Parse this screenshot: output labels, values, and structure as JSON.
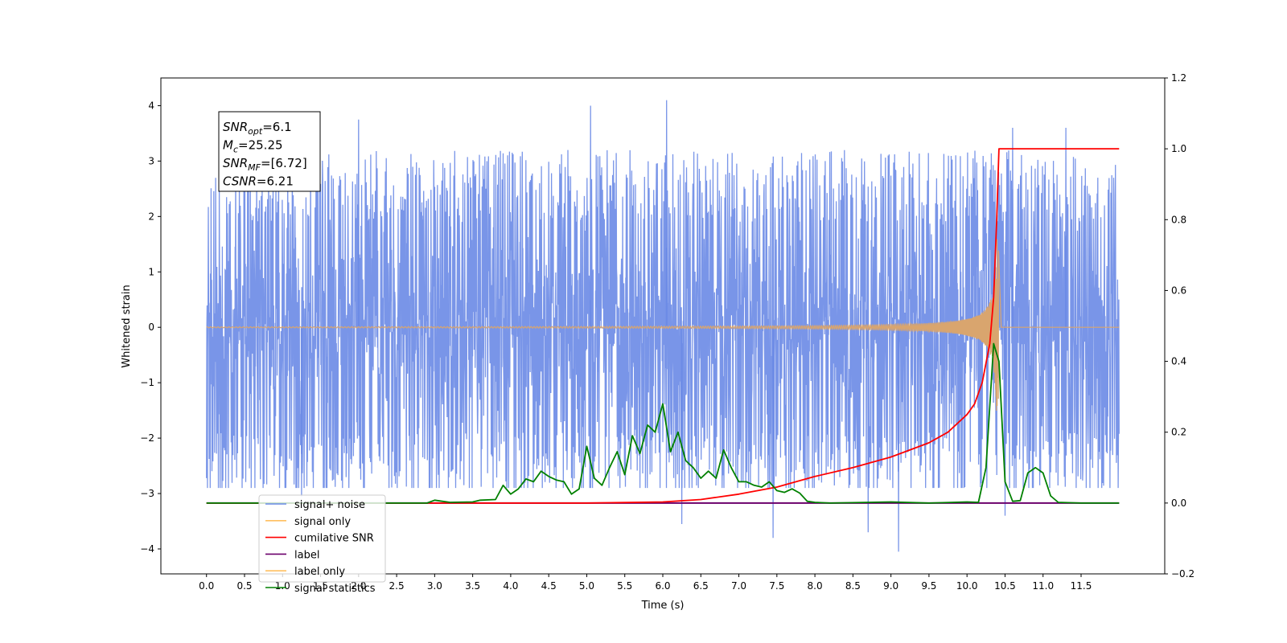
{
  "chart_data": {
    "type": "line",
    "xlabel": "Time (s)",
    "ylabel": "Whitened strain",
    "xlim": [
      -0.6,
      12.6
    ],
    "ylim": [
      -4.45,
      4.5
    ],
    "y2lim": [
      -0.2,
      1.2
    ],
    "x_ticks": [
      "0.0",
      "0.5",
      "1.0",
      "1.5",
      "2.0",
      "2.5",
      "3.0",
      "3.5",
      "4.0",
      "4.5",
      "5.0",
      "5.5",
      "6.0",
      "6.5",
      "7.0",
      "7.5",
      "8.0",
      "8.5",
      "9.0",
      "9.5",
      "10.0",
      "10.5",
      "11.0",
      "11.5"
    ],
    "y_ticks": [
      "4",
      "3",
      "2",
      "1",
      "0",
      "−1",
      "−2",
      "−3",
      "−4"
    ],
    "y2_ticks": [
      "1.2",
      "1.0",
      "0.8",
      "0.6",
      "0.4",
      "0.2",
      "0.0",
      "−0.2"
    ],
    "annotation": {
      "lines": [
        {
          "sym": "SNR",
          "sub": "opt",
          "val": "=6.1"
        },
        {
          "sym": "M",
          "sub": "c",
          "val": "=25.25"
        },
        {
          "sym": "SNR",
          "sub": "MF",
          "val": "=[6.72]"
        },
        {
          "sym": "CSNR",
          "sub": "",
          "val": "=6.21"
        }
      ]
    },
    "legend": {
      "placement": "lower-left",
      "entries": [
        {
          "label": "signal+ noise",
          "color": "#6a8ae6"
        },
        {
          "label": "signal only",
          "color": "#ffbf5f"
        },
        {
          "label": "cumilative SNR",
          "color": "#ff0000"
        },
        {
          "label": "label",
          "color": "#6b006b"
        },
        {
          "label": "label only",
          "color": "#ffbf5f"
        },
        {
          "label": "signal statistics",
          "color": "#008000"
        }
      ]
    },
    "series": [
      {
        "name": "signal+ noise",
        "axis": "left",
        "color": "#6a8ae6",
        "description": "Gaussian whitened noise plus weak chirp, 0-12 s",
        "t_range": [
          0,
          12
        ],
        "noise_sigma": 1.0,
        "extremes": [
          [
            2.0,
            3.75
          ],
          [
            5.05,
            4.0
          ],
          [
            6.05,
            4.1
          ],
          [
            10.6,
            3.6
          ],
          [
            11.3,
            3.6
          ],
          [
            1.25,
            -3.05
          ],
          [
            6.25,
            -3.55
          ],
          [
            7.45,
            -3.8
          ],
          [
            8.7,
            -3.7
          ],
          [
            9.1,
            -4.05
          ],
          [
            10.5,
            -3.4
          ]
        ]
      },
      {
        "name": "signal only",
        "axis": "left",
        "color": "#ffbf5f",
        "description": "inspiral chirp, merger near t=10.42 s",
        "t_range": [
          0,
          10.45
        ],
        "merger_time": 10.42,
        "peak_amplitude": 1.6
      },
      {
        "name": "cumilative SNR",
        "axis": "right",
        "color": "#ff0000",
        "points": [
          [
            0,
            0.0
          ],
          [
            5.0,
            0.0
          ],
          [
            6.0,
            0.003
          ],
          [
            6.5,
            0.01
          ],
          [
            7.0,
            0.025
          ],
          [
            7.5,
            0.045
          ],
          [
            8.0,
            0.075
          ],
          [
            8.5,
            0.1
          ],
          [
            9.0,
            0.13
          ],
          [
            9.5,
            0.17
          ],
          [
            9.75,
            0.2
          ],
          [
            10.0,
            0.25
          ],
          [
            10.1,
            0.28
          ],
          [
            10.2,
            0.34
          ],
          [
            10.3,
            0.45
          ],
          [
            10.35,
            0.58
          ],
          [
            10.39,
            0.8
          ],
          [
            10.42,
            1.0
          ],
          [
            12.0,
            1.0
          ]
        ]
      },
      {
        "name": "label",
        "axis": "right",
        "color": "#6b006b",
        "points": [
          [
            0,
            0.0
          ],
          [
            12.0,
            0.0
          ]
        ]
      },
      {
        "name": "signal statistics",
        "axis": "right",
        "color": "#008000",
        "points": [
          [
            0,
            0.0
          ],
          [
            2.9,
            0.0
          ],
          [
            3.0,
            0.008
          ],
          [
            3.2,
            0.002
          ],
          [
            3.5,
            0.003
          ],
          [
            3.6,
            0.008
          ],
          [
            3.8,
            0.01
          ],
          [
            3.9,
            0.05
          ],
          [
            4.0,
            0.025
          ],
          [
            4.1,
            0.04
          ],
          [
            4.2,
            0.068
          ],
          [
            4.3,
            0.06
          ],
          [
            4.4,
            0.09
          ],
          [
            4.5,
            0.075
          ],
          [
            4.6,
            0.065
          ],
          [
            4.7,
            0.06
          ],
          [
            4.8,
            0.025
          ],
          [
            4.9,
            0.04
          ],
          [
            5.0,
            0.16
          ],
          [
            5.1,
            0.07
          ],
          [
            5.2,
            0.05
          ],
          [
            5.3,
            0.1
          ],
          [
            5.4,
            0.145
          ],
          [
            5.5,
            0.08
          ],
          [
            5.6,
            0.19
          ],
          [
            5.7,
            0.14
          ],
          [
            5.8,
            0.22
          ],
          [
            5.9,
            0.2
          ],
          [
            6.0,
            0.28
          ],
          [
            6.1,
            0.145
          ],
          [
            6.2,
            0.2
          ],
          [
            6.3,
            0.12
          ],
          [
            6.4,
            0.1
          ],
          [
            6.5,
            0.07
          ],
          [
            6.6,
            0.09
          ],
          [
            6.7,
            0.07
          ],
          [
            6.8,
            0.15
          ],
          [
            6.9,
            0.1
          ],
          [
            7.0,
            0.06
          ],
          [
            7.1,
            0.06
          ],
          [
            7.2,
            0.05
          ],
          [
            7.3,
            0.045
          ],
          [
            7.4,
            0.06
          ],
          [
            7.5,
            0.035
          ],
          [
            7.6,
            0.03
          ],
          [
            7.7,
            0.04
          ],
          [
            7.8,
            0.028
          ],
          [
            7.9,
            0.005
          ],
          [
            8.0,
            0.002
          ],
          [
            8.2,
            0.0
          ],
          [
            9.0,
            0.003
          ],
          [
            9.5,
            0.0
          ],
          [
            10.0,
            0.003
          ],
          [
            10.15,
            0.002
          ],
          [
            10.25,
            0.1
          ],
          [
            10.35,
            0.45
          ],
          [
            10.42,
            0.4
          ],
          [
            10.5,
            0.06
          ],
          [
            10.6,
            0.005
          ],
          [
            10.7,
            0.007
          ],
          [
            10.8,
            0.085
          ],
          [
            10.9,
            0.1
          ],
          [
            11.0,
            0.085
          ],
          [
            11.1,
            0.02
          ],
          [
            11.2,
            0.002
          ],
          [
            11.5,
            0.0
          ],
          [
            12.0,
            0.0
          ]
        ]
      }
    ]
  }
}
